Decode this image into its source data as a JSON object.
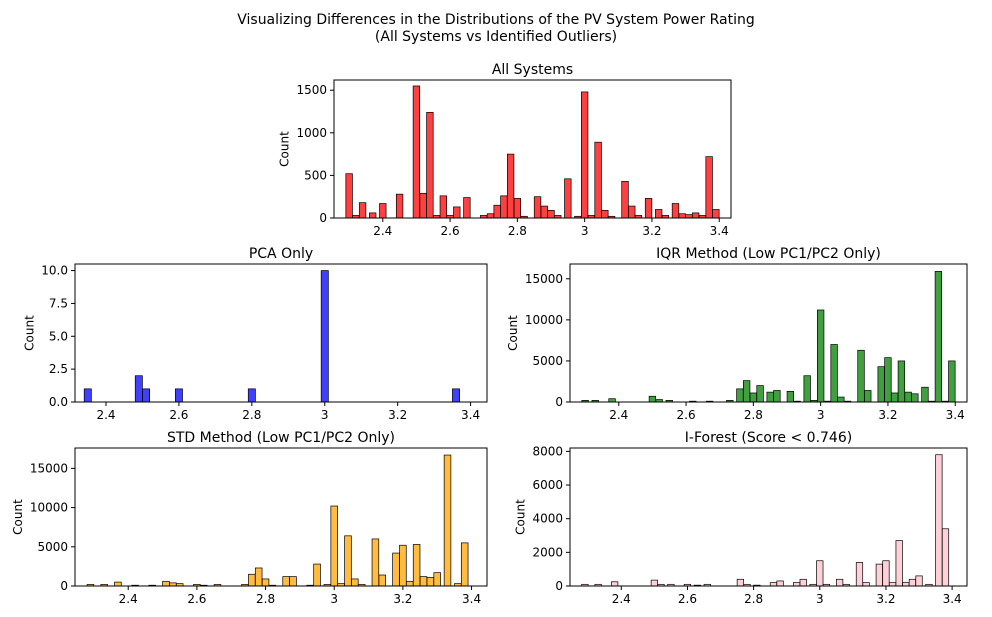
{
  "figure": {
    "suptitle_line1": "Visualizing Differences in the Distributions of the PV System Power Rating",
    "suptitle_line2": "(All Systems vs Identified Outliers)"
  },
  "chart_data": [
    {
      "id": "all-systems",
      "type": "bar",
      "title": "All Systems",
      "xlabel": "",
      "ylabel": "Count",
      "color": "#ff0000",
      "xlim": [
        2.255,
        3.435
      ],
      "ylim": [
        0,
        1620
      ],
      "xticks": [
        2.4,
        2.6,
        2.8,
        3.0,
        3.2,
        3.4
      ],
      "yticks": [
        0,
        500,
        1000,
        1500
      ],
      "x": [
        2.3,
        2.32,
        2.34,
        2.37,
        2.4,
        2.45,
        2.5,
        2.52,
        2.54,
        2.56,
        2.58,
        2.6,
        2.62,
        2.65,
        2.7,
        2.72,
        2.74,
        2.76,
        2.78,
        2.8,
        2.82,
        2.86,
        2.88,
        2.9,
        2.92,
        2.95,
        2.98,
        3.0,
        3.02,
        3.04,
        3.06,
        3.08,
        3.12,
        3.14,
        3.16,
        3.19,
        3.22,
        3.24,
        3.27,
        3.29,
        3.31,
        3.33,
        3.35,
        3.37,
        3.39
      ],
      "values": [
        520,
        30,
        180,
        60,
        170,
        280,
        1550,
        290,
        1240,
        30,
        260,
        30,
        130,
        240,
        30,
        50,
        150,
        260,
        750,
        230,
        20,
        250,
        140,
        90,
        30,
        460,
        20,
        1480,
        30,
        890,
        90,
        20,
        430,
        140,
        30,
        230,
        100,
        30,
        170,
        50,
        40,
        60,
        30,
        720,
        100
      ]
    },
    {
      "id": "pca-only",
      "type": "bar",
      "title": "PCA Only",
      "xlabel": "",
      "ylabel": "Count",
      "color": "#0000ff",
      "xlim": [
        2.315,
        3.445
      ],
      "ylim": [
        0,
        10.5
      ],
      "xticks": [
        2.4,
        2.6,
        2.8,
        3.0,
        3.2,
        3.4
      ],
      "yticks": [
        "0.0",
        "2.5",
        "5.0",
        "7.5",
        "10.0"
      ],
      "x": [
        2.35,
        2.49,
        2.51,
        2.6,
        2.8,
        3.0,
        3.36
      ],
      "values": [
        1,
        2,
        1,
        1,
        1,
        10,
        1
      ]
    },
    {
      "id": "iqr-method",
      "type": "bar",
      "title": "IQR Method (Low PC1/PC2 Only)",
      "xlabel": "",
      "ylabel": "Count",
      "color": "#008000",
      "xlim": [
        2.255,
        3.435
      ],
      "ylim": [
        0,
        16800
      ],
      "xticks": [
        2.4,
        2.6,
        2.8,
        3.0,
        3.2,
        3.4
      ],
      "yticks": [
        0,
        5000,
        10000,
        15000
      ],
      "x": [
        2.3,
        2.33,
        2.38,
        2.5,
        2.52,
        2.55,
        2.62,
        2.67,
        2.73,
        2.76,
        2.78,
        2.8,
        2.82,
        2.85,
        2.87,
        2.91,
        2.93,
        2.96,
        2.98,
        3.0,
        3.02,
        3.04,
        3.06,
        3.08,
        3.12,
        3.14,
        3.18,
        3.2,
        3.22,
        3.24,
        3.26,
        3.28,
        3.31,
        3.33,
        3.35,
        3.37,
        3.39
      ],
      "values": [
        200,
        200,
        400,
        700,
        300,
        200,
        100,
        100,
        200,
        1600,
        2600,
        1100,
        2000,
        1200,
        1400,
        1300,
        100,
        3200,
        200,
        11200,
        100,
        7000,
        600,
        100,
        6300,
        1400,
        4300,
        5400,
        1100,
        5000,
        1200,
        1000,
        1800,
        100,
        15900,
        100,
        5000
      ]
    },
    {
      "id": "std-method",
      "type": "bar",
      "title": "STD Method (Low PC1/PC2 Only)",
      "xlabel": "",
      "ylabel": "Count",
      "color": "#ffa500",
      "xlim": [
        2.245,
        3.445
      ],
      "ylim": [
        0,
        17600
      ],
      "xticks": [
        2.4,
        2.6,
        2.8,
        3.0,
        3.2,
        3.4
      ],
      "yticks": [
        0,
        5000,
        10000,
        15000
      ],
      "x": [
        2.29,
        2.33,
        2.37,
        2.42,
        2.47,
        2.51,
        2.53,
        2.55,
        2.6,
        2.62,
        2.66,
        2.74,
        2.76,
        2.78,
        2.8,
        2.82,
        2.86,
        2.88,
        2.93,
        2.95,
        2.98,
        3.0,
        3.02,
        3.04,
        3.06,
        3.08,
        3.12,
        3.14,
        3.18,
        3.2,
        3.22,
        3.24,
        3.26,
        3.28,
        3.3,
        3.33,
        3.36,
        3.38
      ],
      "values": [
        200,
        200,
        500,
        100,
        100,
        600,
        400,
        300,
        200,
        100,
        200,
        200,
        1500,
        2300,
        900,
        100,
        1200,
        1200,
        100,
        2800,
        200,
        10200,
        300,
        6400,
        900,
        200,
        6000,
        1400,
        4200,
        5200,
        600,
        5300,
        1200,
        1100,
        1700,
        16700,
        300,
        5500
      ]
    },
    {
      "id": "i-forest",
      "type": "bar",
      "title": "I-Forest (Score < 0.746)",
      "xlabel": "",
      "ylabel": "Count",
      "color": "#ffc0cb",
      "xlim": [
        2.245,
        3.445
      ],
      "ylim": [
        0,
        8200
      ],
      "xticks": [
        2.4,
        2.6,
        2.8,
        3.0,
        3.2,
        3.4
      ],
      "yticks": [
        0,
        2000,
        4000,
        6000,
        8000
      ],
      "x": [
        2.29,
        2.33,
        2.38,
        2.5,
        2.52,
        2.55,
        2.6,
        2.63,
        2.66,
        2.76,
        2.78,
        2.81,
        2.86,
        2.88,
        2.93,
        2.95,
        2.98,
        3.0,
        3.02,
        3.06,
        3.08,
        3.12,
        3.14,
        3.18,
        3.2,
        3.22,
        3.24,
        3.26,
        3.28,
        3.3,
        3.33,
        3.36,
        3.38
      ],
      "values": [
        100,
        100,
        250,
        350,
        100,
        100,
        100,
        50,
        100,
        400,
        100,
        50,
        200,
        300,
        200,
        400,
        100,
        1500,
        100,
        400,
        100,
        1400,
        200,
        1300,
        1500,
        200,
        2700,
        200,
        400,
        600,
        100,
        7800,
        3400
      ]
    }
  ]
}
